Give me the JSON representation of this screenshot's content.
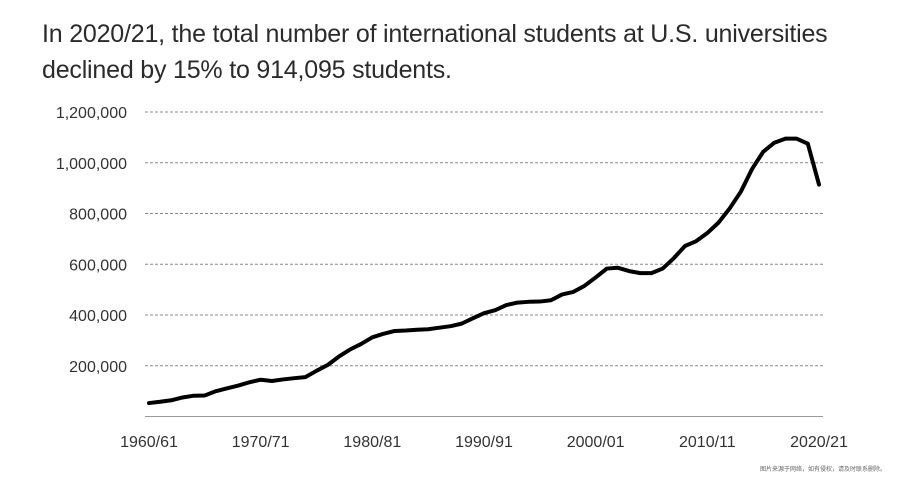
{
  "chart_data": {
    "type": "line",
    "title": "In 2020/21, the total number of international students at U.S. universities declined by 15% to 914,095 students.",
    "xlabel": "",
    "ylabel": "",
    "ylim": [
      0,
      1200000
    ],
    "yticks": [
      200000,
      400000,
      600000,
      800000,
      1000000,
      1200000
    ],
    "ytick_labels": [
      "200,000",
      "400,000",
      "600,000",
      "800,000",
      "1,000,000",
      "1,200,000"
    ],
    "xtick_labels": [
      "1960/61",
      "1970/71",
      "1980/81",
      "1990/91",
      "2000/01",
      "2010/11",
      "2020/21"
    ],
    "grid": "horizontal-dashed",
    "line_color": "#000000",
    "series": [
      {
        "x": [
          "1960/61",
          "1961/62",
          "1962/63",
          "1963/64",
          "1964/65",
          "1965/66",
          "1966/67",
          "1967/68",
          "1968/69",
          "1969/70",
          "1970/71",
          "1971/72",
          "1972/73",
          "1973/74",
          "1974/75",
          "1975/76",
          "1976/77",
          "1977/78",
          "1978/79",
          "1979/80",
          "1980/81",
          "1981/82",
          "1982/83",
          "1983/84",
          "1984/85",
          "1985/86",
          "1986/87",
          "1987/88",
          "1988/89",
          "1989/90",
          "1990/91",
          "1991/92",
          "1992/93",
          "1993/94",
          "1994/95",
          "1995/96",
          "1996/97",
          "1997/98",
          "1998/99",
          "1999/00",
          "2000/01",
          "2001/02",
          "2002/03",
          "2003/04",
          "2004/05",
          "2005/06",
          "2006/07",
          "2007/08",
          "2008/09",
          "2009/10",
          "2010/11",
          "2011/12",
          "2012/13",
          "2013/14",
          "2014/15",
          "2015/16",
          "2016/17",
          "2017/18",
          "2018/19",
          "2019/20",
          "2020/21"
        ],
        "values": [
          53000,
          58000,
          64000,
          75000,
          82000,
          83000,
          100000,
          111000,
          122000,
          135000,
          145000,
          140000,
          146000,
          151000,
          155000,
          180000,
          203000,
          236000,
          264000,
          286000,
          312000,
          326000,
          337000,
          339000,
          342000,
          344000,
          350000,
          356000,
          366000,
          387000,
          407000,
          419000,
          439000,
          449000,
          452000,
          453000,
          458000,
          481000,
          491000,
          515000,
          548000,
          583000,
          586000,
          573000,
          565000,
          565000,
          583000,
          624000,
          672000,
          691000,
          723000,
          764000,
          820000,
          886000,
          975000,
          1043000,
          1079000,
          1095000,
          1095000,
          1075000,
          914095
        ]
      }
    ]
  },
  "watermark": "图片来源于网络，如有侵权，请及时联系删除。"
}
